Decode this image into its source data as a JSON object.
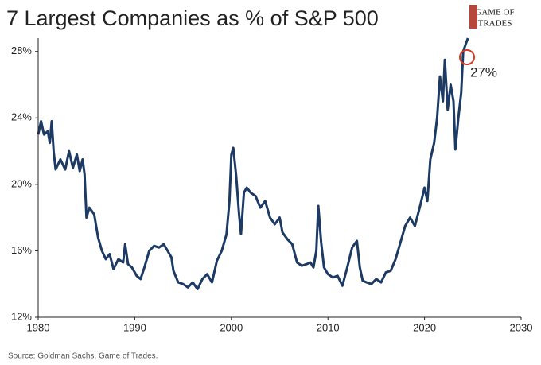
{
  "chart_data": {
    "type": "line",
    "title": "7 Largest Companies as % of S&P 500",
    "source": "Source: Goldman Sachs, Game of Trades.",
    "annotation": "27%",
    "logo": [
      "GAME OF",
      "TRADES"
    ],
    "color": "#1c3a63",
    "xlim": [
      1980,
      2030
    ],
    "xticks": [
      1980,
      1990,
      2000,
      2010,
      2020,
      2030
    ],
    "ylim": [
      12,
      28.8
    ],
    "yticks": [
      {
        "value": 12,
        "label": "12%"
      },
      {
        "value": 16,
        "label": "16%"
      },
      {
        "value": 20,
        "label": "20%"
      },
      {
        "value": 24,
        "label": "24%"
      },
      {
        "value": 28,
        "label": "28%"
      }
    ],
    "x": [
      1980,
      1980.3,
      1980.6,
      1981,
      1981.2,
      1981.4,
      1981.6,
      1981.8,
      1982.3,
      1982.8,
      1983.2,
      1983.6,
      1984,
      1984.3,
      1984.6,
      1984.8,
      1985,
      1985.3,
      1985.8,
      1986.2,
      1986.6,
      1987,
      1987.4,
      1987.8,
      1988.3,
      1988.8,
      1989,
      1989.3,
      1989.7,
      1990.2,
      1990.6,
      1991,
      1991.5,
      1992,
      1992.5,
      1993,
      1993.4,
      1993.8,
      1994,
      1994.5,
      1995,
      1995.5,
      1996,
      1996.5,
      1997,
      1997.5,
      1998,
      1998.5,
      1999,
      1999.5,
      1999.8,
      2000,
      2000.2,
      2000.5,
      2000.8,
      2001,
      2001.3,
      2001.6,
      2002,
      2002.5,
      2003,
      2003.5,
      2004,
      2004.5,
      2005,
      2005.3,
      2005.8,
      2006.3,
      2006.8,
      2007.3,
      2007.8,
      2008.2,
      2008.5,
      2008.8,
      2009,
      2009.3,
      2009.6,
      2010,
      2010.5,
      2011,
      2011.5,
      2012,
      2012.5,
      2013,
      2013.3,
      2013.6,
      2014,
      2014.5,
      2015,
      2015.5,
      2016,
      2016.5,
      2017,
      2017.5,
      2018,
      2018.5,
      2019,
      2019.5,
      2020,
      2020.3,
      2020.6,
      2021,
      2021.3,
      2021.6,
      2021.9,
      2022.1,
      2022.4,
      2022.7,
      2023,
      2023.2,
      2023.5,
      2023.8,
      2024,
      2024.3,
      2024.5
    ],
    "values": [
      23.0,
      23.8,
      23.0,
      23.2,
      22.5,
      23.8,
      22.0,
      20.9,
      21.5,
      20.9,
      22.0,
      21.0,
      21.8,
      20.8,
      21.5,
      20.6,
      18.0,
      18.6,
      18.2,
      16.8,
      16.0,
      15.5,
      15.8,
      14.9,
      15.5,
      15.3,
      16.4,
      15.2,
      15.0,
      14.5,
      14.3,
      15.0,
      16.0,
      16.3,
      16.2,
      16.4,
      16.0,
      15.6,
      14.8,
      14.1,
      14.0,
      13.8,
      14.1,
      13.7,
      14.3,
      14.6,
      14.1,
      15.4,
      16.0,
      17.0,
      19.0,
      21.8,
      22.2,
      20.5,
      18.2,
      17.0,
      19.5,
      19.8,
      19.5,
      19.3,
      18.6,
      19.0,
      18.0,
      17.6,
      18.0,
      17.1,
      16.7,
      16.4,
      15.3,
      15.1,
      15.2,
      15.3,
      15.0,
      16.0,
      18.7,
      16.5,
      15.0,
      14.6,
      14.4,
      14.5,
      13.9,
      15.0,
      16.2,
      16.6,
      15.0,
      14.2,
      14.1,
      14.0,
      14.3,
      14.1,
      14.7,
      14.8,
      15.5,
      16.5,
      17.5,
      18.0,
      17.5,
      18.6,
      19.8,
      19.0,
      21.5,
      22.5,
      24.0,
      26.5,
      25.0,
      27.5,
      24.5,
      26.0,
      25.0,
      22.1,
      24.0,
      25.5,
      28.0,
      28.5,
      28.8
    ]
  }
}
